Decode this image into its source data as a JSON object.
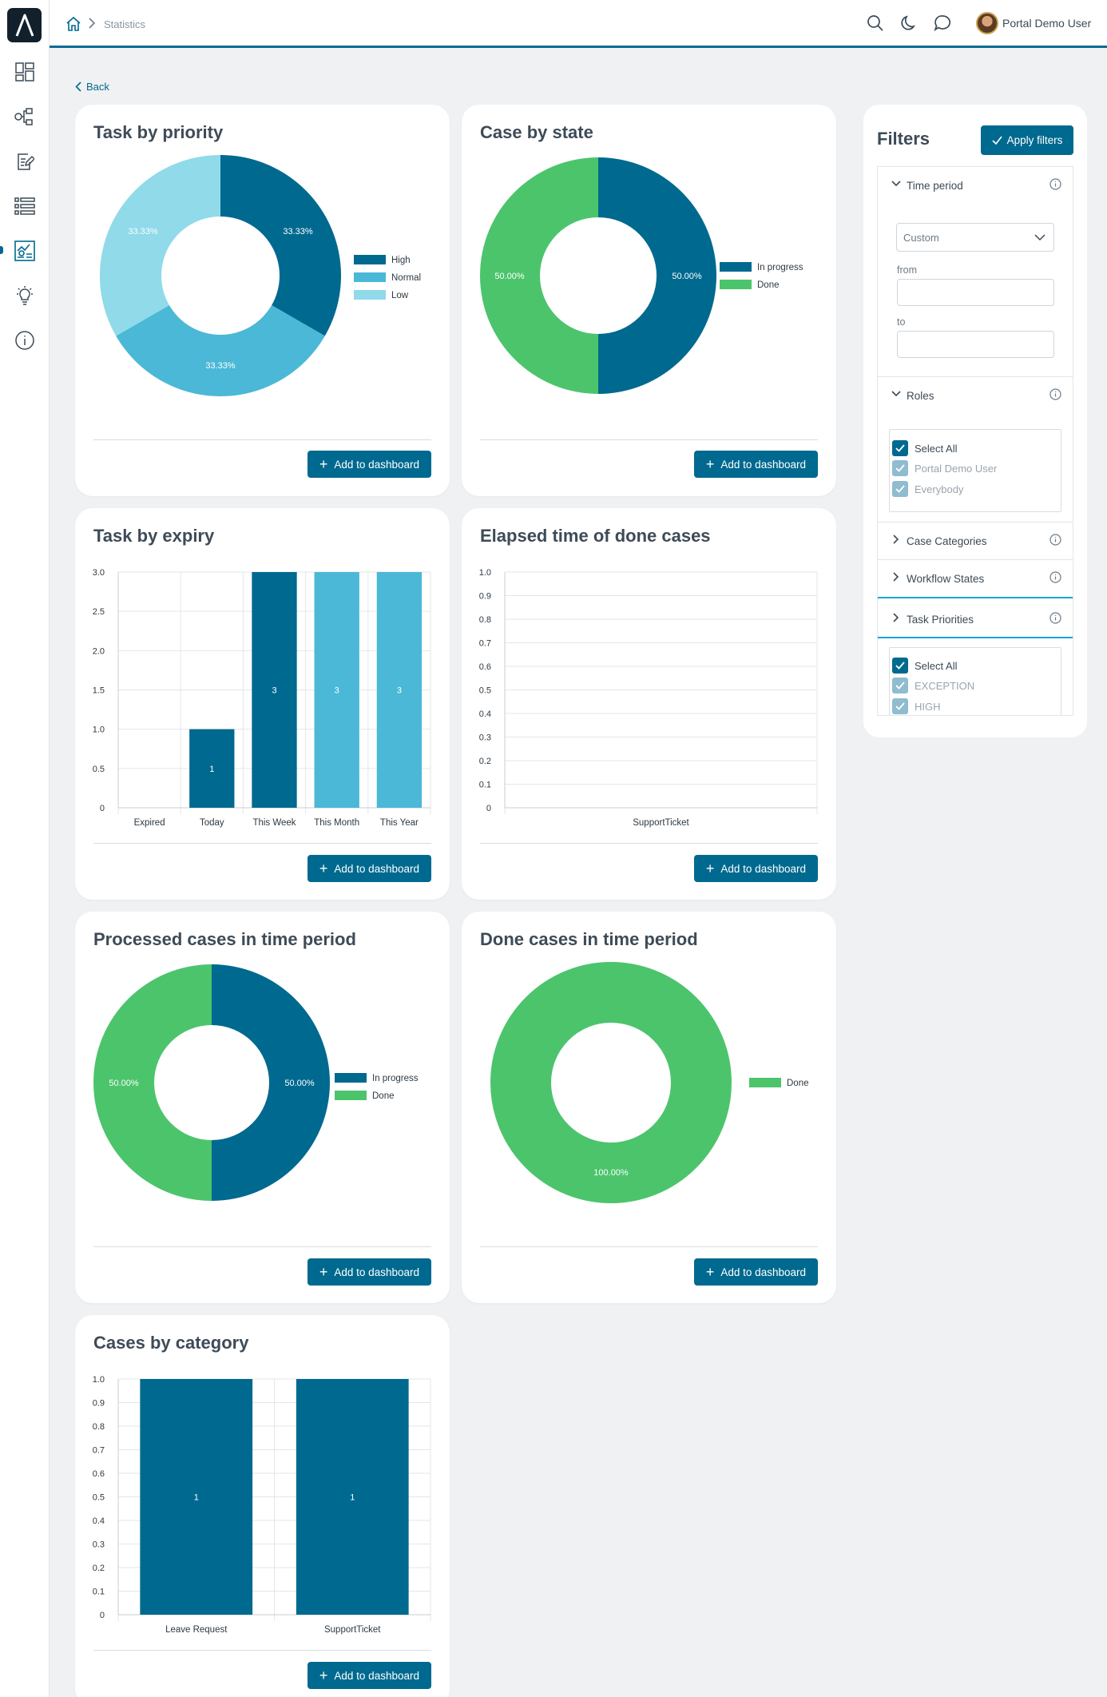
{
  "topbar": {
    "breadcrumb_current": "Statistics",
    "user_name": "Portal Demo User"
  },
  "sidebar": {
    "icons": [
      "dashboard-icon",
      "process-icon",
      "tasks-icon",
      "cases-icon",
      "statistics-icon",
      "idea-icon",
      "info-icon"
    ]
  },
  "page": {
    "back_label": "Back",
    "add_label": "Add to dashboard"
  },
  "colors": {
    "accent": "#00698f",
    "mid": "#4ab8d6",
    "light": "#90daea",
    "green": "#4cc46c"
  },
  "cards": [
    {
      "title": "Task by priority"
    },
    {
      "title": "Case by state"
    },
    {
      "title": "Task by expiry"
    },
    {
      "title": "Elapsed time of done cases"
    },
    {
      "title": "Processed cases in time period"
    },
    {
      "title": "Done cases in time period"
    },
    {
      "title": "Cases by category"
    }
  ],
  "chart_data": [
    {
      "type": "pie",
      "title": "Task by priority",
      "labels": [
        "High",
        "Normal",
        "Low"
      ],
      "values": [
        33.33,
        33.33,
        33.33
      ],
      "data_labels": [
        "33.33%",
        "33.33%",
        "33.33%"
      ],
      "colors": [
        "#00698f",
        "#4ab8d6",
        "#90daea"
      ],
      "legend": "right",
      "donut": true
    },
    {
      "type": "pie",
      "title": "Case by state",
      "labels": [
        "In progress",
        "Done"
      ],
      "values": [
        50.0,
        50.0
      ],
      "data_labels": [
        "50.00%",
        "50.00%"
      ],
      "colors": [
        "#00698f",
        "#4cc46c"
      ],
      "legend": "right",
      "donut": true
    },
    {
      "type": "bar",
      "title": "Task by expiry",
      "categories": [
        "Expired",
        "Today",
        "This Week",
        "This Month",
        "This Year"
      ],
      "values": [
        0,
        1,
        3,
        3,
        3
      ],
      "data_labels": [
        "",
        "1",
        "3",
        "3",
        "3"
      ],
      "colors": [
        "#00698f",
        "#00698f",
        "#00698f",
        "#4ab8d6",
        "#4ab8d6"
      ],
      "yticks": [
        "0",
        "0.5",
        "1.0",
        "1.5",
        "2.0",
        "2.5",
        "3.0"
      ],
      "ylim": [
        0,
        3
      ],
      "grid": true
    },
    {
      "type": "bar",
      "title": "Elapsed time of done cases",
      "categories": [
        "SupportTicket"
      ],
      "values": [
        0
      ],
      "data_labels": [
        ""
      ],
      "colors": [
        "#00698f"
      ],
      "yticks": [
        "0",
        "0.1",
        "0.2",
        "0.3",
        "0.4",
        "0.5",
        "0.6",
        "0.7",
        "0.8",
        "0.9",
        "1.0"
      ],
      "ylim": [
        0,
        1
      ],
      "grid": true
    },
    {
      "type": "pie",
      "title": "Processed cases in time period",
      "labels": [
        "In progress",
        "Done"
      ],
      "values": [
        50.0,
        50.0
      ],
      "data_labels": [
        "50.00%",
        "50.00%"
      ],
      "colors": [
        "#00698f",
        "#4cc46c"
      ],
      "legend": "right",
      "donut": true
    },
    {
      "type": "pie",
      "title": "Done cases in time period",
      "labels": [
        "Done"
      ],
      "values": [
        100.0
      ],
      "data_labels": [
        "100.00%"
      ],
      "colors": [
        "#4cc46c"
      ],
      "legend": "right",
      "donut": true
    },
    {
      "type": "bar",
      "title": "Cases by category",
      "categories": [
        "Leave Request",
        "SupportTicket"
      ],
      "values": [
        1,
        1
      ],
      "data_labels": [
        "1",
        "1"
      ],
      "colors": [
        "#00698f",
        "#00698f"
      ],
      "yticks": [
        "0",
        "0.1",
        "0.2",
        "0.3",
        "0.4",
        "0.5",
        "0.6",
        "0.7",
        "0.8",
        "0.9",
        "1.0"
      ],
      "ylim": [
        0,
        1
      ],
      "grid": true
    }
  ],
  "filters": {
    "title": "Filters",
    "apply_label": "Apply filters",
    "time_period": {
      "label": "Time period",
      "selected": "Custom",
      "from_label": "from",
      "to_label": "to"
    },
    "roles": {
      "label": "Roles",
      "items": [
        "Select All",
        "Portal Demo User",
        "Everybody"
      ]
    },
    "case_categories": "Case Categories",
    "workflow_states": "Workflow States",
    "task_priorities": {
      "label": "Task Priorities",
      "items": [
        "Select All",
        "EXCEPTION",
        "HIGH"
      ]
    }
  }
}
